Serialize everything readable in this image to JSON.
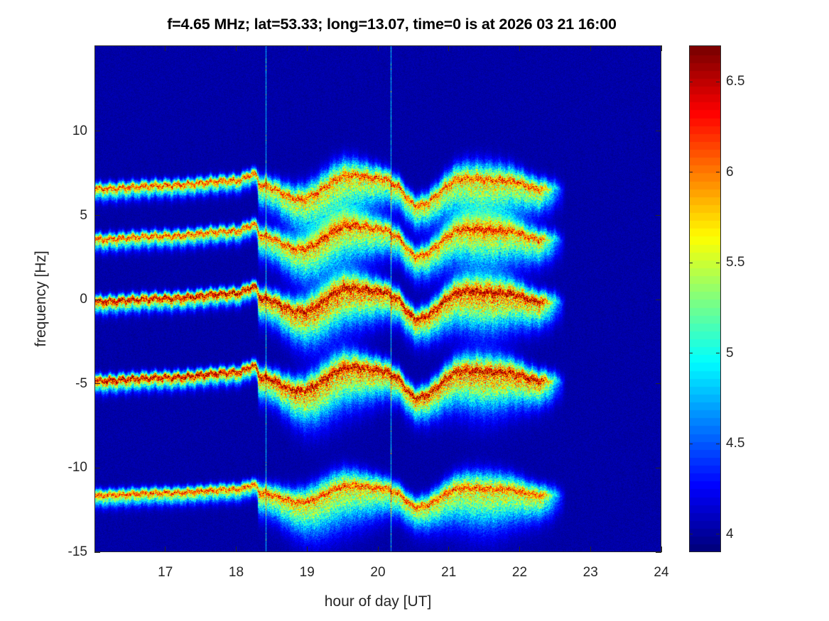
{
  "chart_data": {
    "type": "heatmap",
    "title": "f=4.65 MHz;  lat=53.33; long=13.07, time=0 is at 2026 03 21 16:00",
    "xlabel": "hour of day [UT]",
    "ylabel": "frequency [Hz]",
    "xlim": [
      16,
      24
    ],
    "ylim": [
      -15,
      15.1
    ],
    "xticks": [
      "17",
      "18",
      "19",
      "20",
      "21",
      "22",
      "23",
      "24"
    ],
    "xtick_values": [
      17,
      18,
      19,
      20,
      21,
      22,
      23,
      24
    ],
    "yticks": [
      "10",
      "5",
      "0",
      "-5",
      "-10",
      "-15"
    ],
    "ytick_values": [
      10,
      5,
      0,
      -5,
      -10,
      -15
    ],
    "colorbar": {
      "clim": [
        3.9,
        6.7
      ],
      "ticks": [
        "6.5",
        "6",
        "5.5",
        "5",
        "4.5",
        "4"
      ],
      "tick_values": [
        6.5,
        6,
        5.5,
        5,
        4.5,
        4
      ],
      "colormap": "jet"
    },
    "doppler_traces": {
      "base_offsets_hz": [
        6.6,
        3.6,
        -0.1,
        -4.8,
        -11.6
      ],
      "drift_hours": [
        16.0,
        17.0,
        18.0,
        18.25,
        18.35,
        18.9,
        19.6,
        20.1,
        20.2,
        20.55,
        21.2,
        21.8,
        22.3
      ],
      "drift_hz": [
        0.0,
        0.2,
        0.5,
        0.9,
        0.2,
        -0.6,
        0.8,
        0.6,
        0.3,
        -1.0,
        0.6,
        0.5,
        0.0
      ],
      "signal_end_hour": 22.5,
      "vertical_artifacts_hours": [
        18.42,
        20.18
      ]
    }
  }
}
